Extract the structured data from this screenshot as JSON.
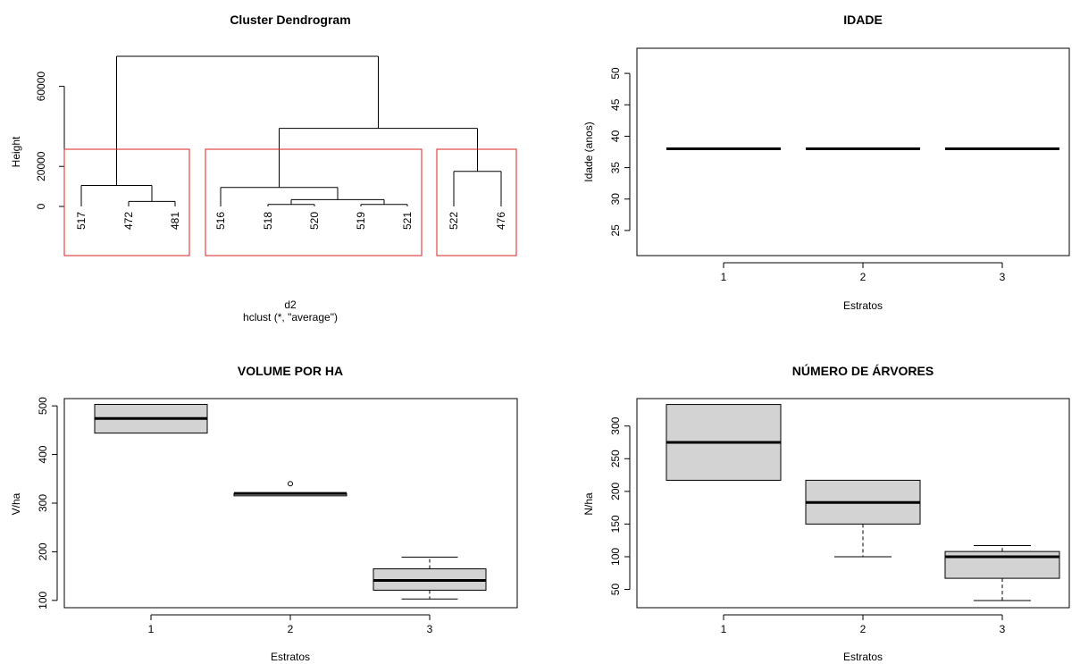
{
  "chart_data": [
    {
      "type": "dendrogram",
      "title": "Cluster Dendrogram",
      "ylabel": "Height",
      "xlabel": "d2",
      "subtitle": "hclust (*, \"average\")",
      "ylim": [
        0,
        75000
      ],
      "yticks": [
        0,
        20000,
        60000
      ],
      "leaves": [
        "517",
        "472",
        "481",
        "516",
        "518",
        "520",
        "519",
        "521",
        "522",
        "476"
      ],
      "merges": [
        {
          "a": "472",
          "b": "481",
          "height": 2500
        },
        {
          "a": "518",
          "b": "520",
          "height": 1000
        },
        {
          "a": "519",
          "b": "521",
          "height": 1000
        },
        {
          "a": "518+520",
          "b": "519+521",
          "height": 3400
        },
        {
          "a": "516",
          "b": "518+520+519+521",
          "height": 9500
        },
        {
          "a": "517",
          "b": "472+481",
          "height": 10500
        },
        {
          "a": "522",
          "b": "476",
          "height": 17500
        },
        {
          "a": "516 group",
          "b": "522+476",
          "height": 39000
        },
        {
          "a": "517 group",
          "b": "516+522 group",
          "height": 75000
        }
      ],
      "rect_clusters": [
        [
          "517",
          "472",
          "481"
        ],
        [
          "516",
          "518",
          "520",
          "519",
          "521"
        ],
        [
          "522",
          "476"
        ]
      ],
      "rect_color": "#df2020"
    },
    {
      "type": "boxplot",
      "title": "IDADE",
      "xlabel": "Estratos",
      "ylabel": "Idade (anos)",
      "categories": [
        "1",
        "2",
        "3"
      ],
      "ylim": [
        21,
        54
      ],
      "yticks": [
        25,
        30,
        35,
        40,
        45,
        50
      ],
      "boxes": [
        {
          "min": 38,
          "q1": 38,
          "median": 38,
          "q3": 38,
          "max": 38,
          "outliers": []
        },
        {
          "min": 38,
          "q1": 38,
          "median": 38,
          "q3": 38,
          "max": 38,
          "outliers": []
        },
        {
          "min": 38,
          "q1": 38,
          "median": 38,
          "q3": 38,
          "max": 38,
          "outliers": []
        }
      ]
    },
    {
      "type": "boxplot",
      "title": "VOLUME POR HA",
      "xlabel": "Estratos",
      "ylabel": "V/ha",
      "categories": [
        "1",
        "2",
        "3"
      ],
      "ylim": [
        85,
        515
      ],
      "yticks": [
        100,
        200,
        300,
        400,
        500
      ],
      "boxes": [
        {
          "min": 444,
          "q1": 444,
          "median": 474,
          "q3": 503,
          "max": 503,
          "outliers": []
        },
        {
          "min": 315,
          "q1": 315,
          "median": 320,
          "q3": 320,
          "max": 320,
          "outliers": [
            340
          ]
        },
        {
          "min": 103,
          "q1": 121,
          "median": 141,
          "q3": 165,
          "max": 189,
          "outliers": []
        }
      ]
    },
    {
      "type": "boxplot",
      "title": "NÚMERO DE ÁRVORES",
      "xlabel": "Estratos",
      "ylabel": "N/ha",
      "categories": [
        "1",
        "2",
        "3"
      ],
      "ylim": [
        22,
        342
      ],
      "yticks": [
        50,
        100,
        150,
        200,
        250,
        300
      ],
      "boxes": [
        {
          "min": 217,
          "q1": 217,
          "median": 275,
          "q3": 333,
          "max": 333,
          "outliers": []
        },
        {
          "min": 100,
          "q1": 150,
          "median": 183,
          "q3": 217,
          "max": 217,
          "outliers": []
        },
        {
          "min": 33,
          "q1": 67,
          "median": 100,
          "q3": 108,
          "max": 117,
          "outliers": []
        }
      ]
    }
  ]
}
